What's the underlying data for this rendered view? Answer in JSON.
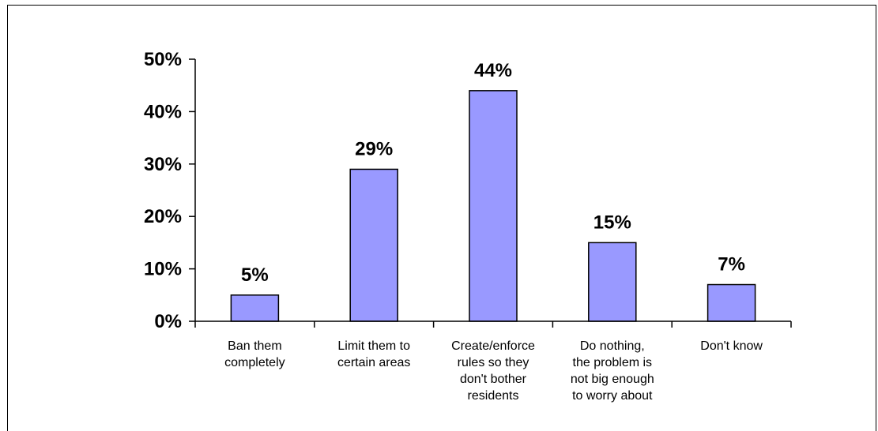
{
  "chart_data": {
    "type": "bar",
    "categories": [
      [
        "Ban them",
        "completely"
      ],
      [
        "Limit them to",
        "certain areas"
      ],
      [
        "Create/enforce",
        "rules so they",
        "don't bother",
        "residents"
      ],
      [
        "Do nothing,",
        "the problem is",
        "not big enough",
        "to worry about"
      ],
      [
        "Don't know"
      ]
    ],
    "values": [
      5,
      29,
      44,
      15,
      7
    ],
    "value_labels": [
      "5%",
      "29%",
      "44%",
      "15%",
      "7%"
    ],
    "y_ticks": [
      "0%",
      "10%",
      "20%",
      "30%",
      "40%",
      "50%"
    ],
    "ylim": [
      0,
      50
    ],
    "title": "",
    "xlabel": "",
    "ylabel": "",
    "grid": false,
    "bar_color": "#9999ff",
    "bar_edge_color": "#000000"
  }
}
